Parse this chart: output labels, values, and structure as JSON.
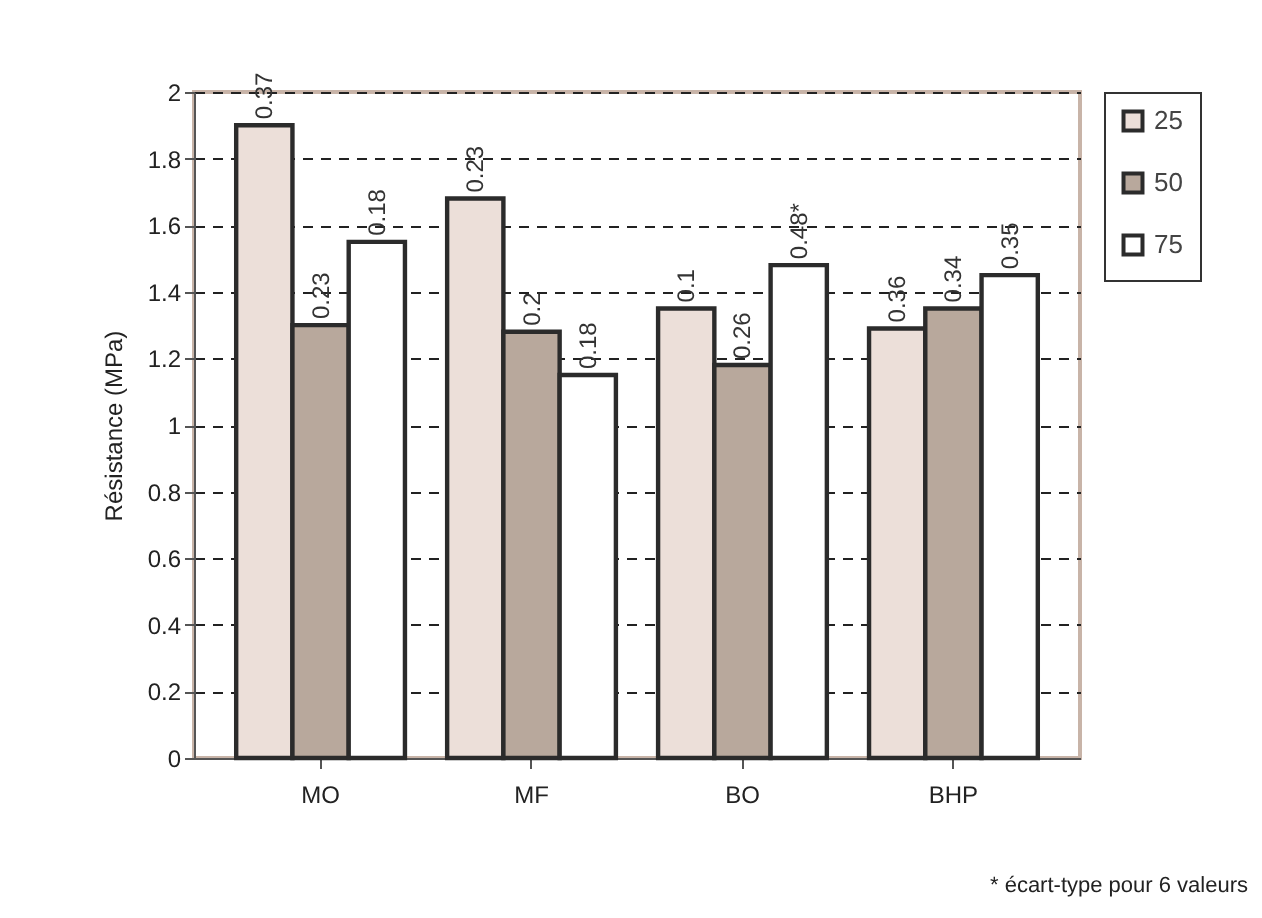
{
  "chart_data": {
    "type": "bar",
    "categories": [
      "MO",
      "MF",
      "BO",
      "BHP"
    ],
    "ylabel": "Résistance (MPa)",
    "series": [
      {
        "name": "25",
        "color": "#ecdfd9",
        "values": [
          1.9,
          1.68,
          1.35,
          1.29
        ]
      },
      {
        "name": "50",
        "color": "#b8a89c",
        "values": [
          1.3,
          1.28,
          1.18,
          1.35
        ]
      },
      {
        "name": "75",
        "color": "#ffffff",
        "values": [
          1.55,
          1.15,
          1.48,
          1.45
        ]
      }
    ],
    "ylim": [
      0,
      2
    ],
    "yticks": [
      0,
      0.2,
      0.4,
      0.6,
      0.8,
      1,
      1.2,
      1.4,
      1.6,
      1.8,
      2
    ],
    "grid": "y",
    "legend": "right",
    "annotations": [
      "0.37",
      "0.23",
      "0.18",
      "0.23",
      "0.2",
      "0.18",
      "0.1",
      "0.26",
      "0.48*",
      "0.36",
      "0.34",
      "0.35",
      "* écart-type pour 6 valeurs"
    ]
  }
}
